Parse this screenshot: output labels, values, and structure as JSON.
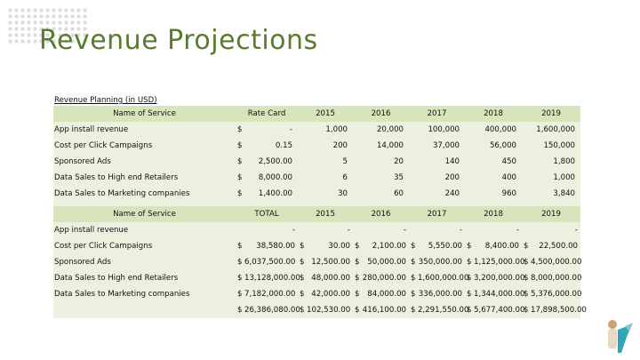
{
  "title": "Revenue Projections",
  "caption": "Revenue Planning (in USD)",
  "table1": {
    "header": [
      "Name of Service",
      "Rate Card",
      "2015",
      "2016",
      "2017",
      "2018",
      "2019"
    ],
    "rows": [
      {
        "name": "App install revenue",
        "cur": "$",
        "rate": "-",
        "v": [
          "1,000",
          "20,000",
          "100,000",
          "400,000",
          "1,600,000"
        ]
      },
      {
        "name": "Cost per Click Campaigns",
        "cur": "$",
        "rate": "0.15",
        "v": [
          "200",
          "14,000",
          "37,000",
          "56,000",
          "150,000"
        ]
      },
      {
        "name": "Sponsored Ads",
        "cur": "$",
        "rate": "2,500.00",
        "v": [
          "5",
          "20",
          "140",
          "450",
          "1,800"
        ]
      },
      {
        "name": "Data Sales to High end Retailers",
        "cur": "$",
        "rate": "8,000.00",
        "v": [
          "6",
          "35",
          "200",
          "400",
          "1,000"
        ]
      },
      {
        "name": "Data Sales to Marketing companies",
        "cur": "$",
        "rate": "1,400.00",
        "v": [
          "30",
          "60",
          "240",
          "960",
          "3,840"
        ]
      }
    ]
  },
  "table2": {
    "header": [
      "Name of Service",
      "TOTAL",
      "2015",
      "2016",
      "2017",
      "2018",
      "2019"
    ],
    "rows": [
      {
        "name": "App install revenue",
        "c": [
          "",
          "-",
          "",
          "-",
          "",
          "-",
          "",
          "-",
          "",
          "-",
          "",
          "-"
        ]
      },
      {
        "name": "Cost per Click Campaigns",
        "c": [
          "$",
          "38,580.00",
          "$",
          "30.00",
          "$",
          "2,100.00",
          "$",
          "5,550.00",
          "$",
          "8,400.00",
          "$",
          "22,500.00"
        ]
      },
      {
        "name": "Sponsored Ads",
        "c": [
          "$",
          "6,037,500.00",
          "$",
          "12,500.00",
          "$",
          "50,000.00",
          "$",
          "350,000.00",
          "$",
          "1,125,000.00",
          "$",
          "4,500,000.00"
        ]
      },
      {
        "name": "Data Sales to High end Retailers",
        "c": [
          "$",
          "13,128,000.00",
          "$",
          "48,000.00",
          "$",
          "280,000.00",
          "$",
          "1,600,000.00",
          "$",
          "3,200,000.00",
          "$",
          "8,000,000.00"
        ]
      },
      {
        "name": "Data Sales to Marketing companies",
        "c": [
          "$",
          "7,182,000.00",
          "$",
          "42,000.00",
          "$",
          "84,000.00",
          "$",
          "336,000.00",
          "$",
          "1,344,000.00",
          "$",
          "5,376,000.00"
        ]
      },
      {
        "name": "",
        "c": [
          "$",
          "26,386,080.00",
          "$",
          "102,530.00",
          "$",
          "416,100.00",
          "$",
          "2,291,550.00",
          "$",
          "5,677,400.00",
          "$",
          "17,898,500.00"
        ]
      }
    ]
  }
}
